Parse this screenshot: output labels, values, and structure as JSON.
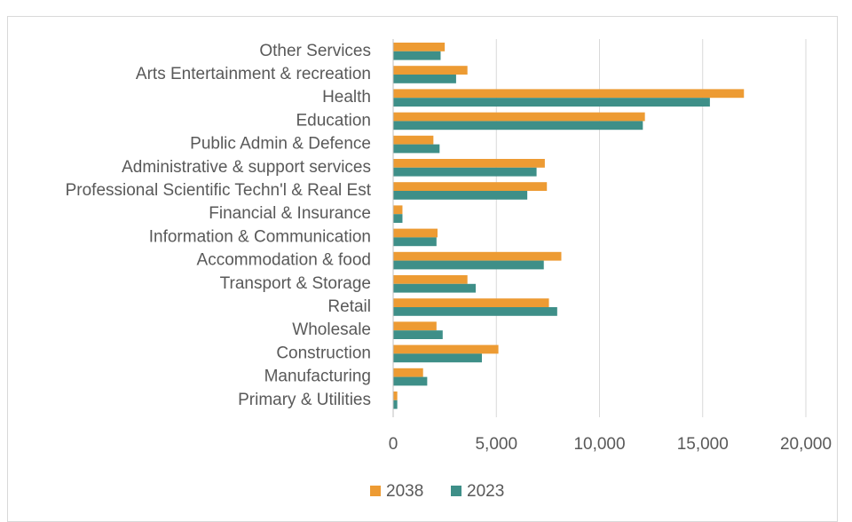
{
  "chart_data": {
    "type": "bar",
    "orientation": "horizontal",
    "title": "",
    "xlabel": "",
    "ylabel": "",
    "xlim": [
      0,
      20000
    ],
    "x_ticks": [
      "0",
      "5,000",
      "10,000",
      "15,000",
      "20,000"
    ],
    "x_tick_values": [
      0,
      5000,
      10000,
      15000,
      20000
    ],
    "grid": "vertical",
    "legend_position": "bottom",
    "categories": [
      "Other Services",
      "Arts Entertainment & recreation",
      "Health",
      "Education",
      "Public Admin & Defence",
      "Administrative & support services",
      "Professional Scientific Techn'l & Real Est",
      "Financial & Insurance",
      "Information & Communication",
      "Accommodation & food",
      "Transport & Storage",
      "Retail",
      "Wholesale",
      "Construction",
      "Manufacturing",
      "Primary & Utilities"
    ],
    "series": [
      {
        "name": "2038",
        "color": "#ED9B33",
        "values": [
          2500,
          3600,
          17000,
          12200,
          1950,
          7350,
          7450,
          450,
          2150,
          8150,
          3600,
          7550,
          2100,
          5100,
          1450,
          200
        ]
      },
      {
        "name": "2023",
        "color": "#3E8F88",
        "values": [
          2300,
          3050,
          15350,
          12100,
          2250,
          6950,
          6500,
          450,
          2100,
          7300,
          4000,
          7950,
          2400,
          4300,
          1650,
          200
        ]
      }
    ]
  }
}
